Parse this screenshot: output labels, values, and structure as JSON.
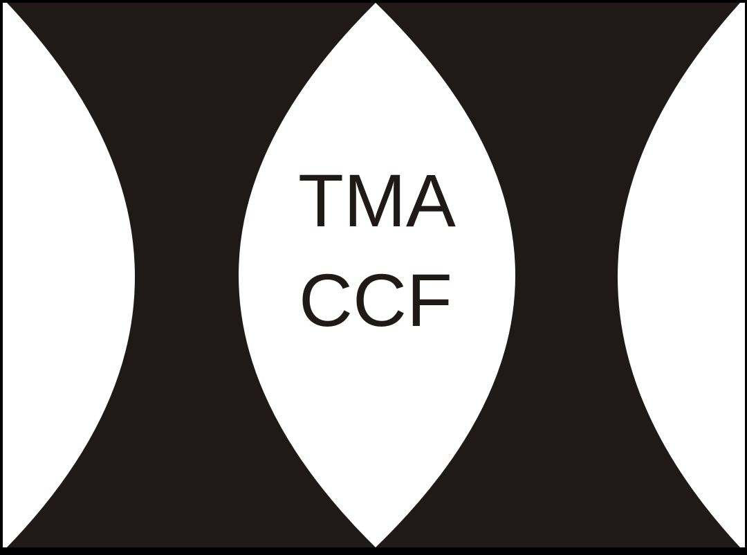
{
  "logo": {
    "line1": "TMA",
    "line2": "CCF"
  },
  "colors": {
    "ink": "#1f1a17",
    "paper": "#ffffff",
    "frame": "#000000"
  }
}
